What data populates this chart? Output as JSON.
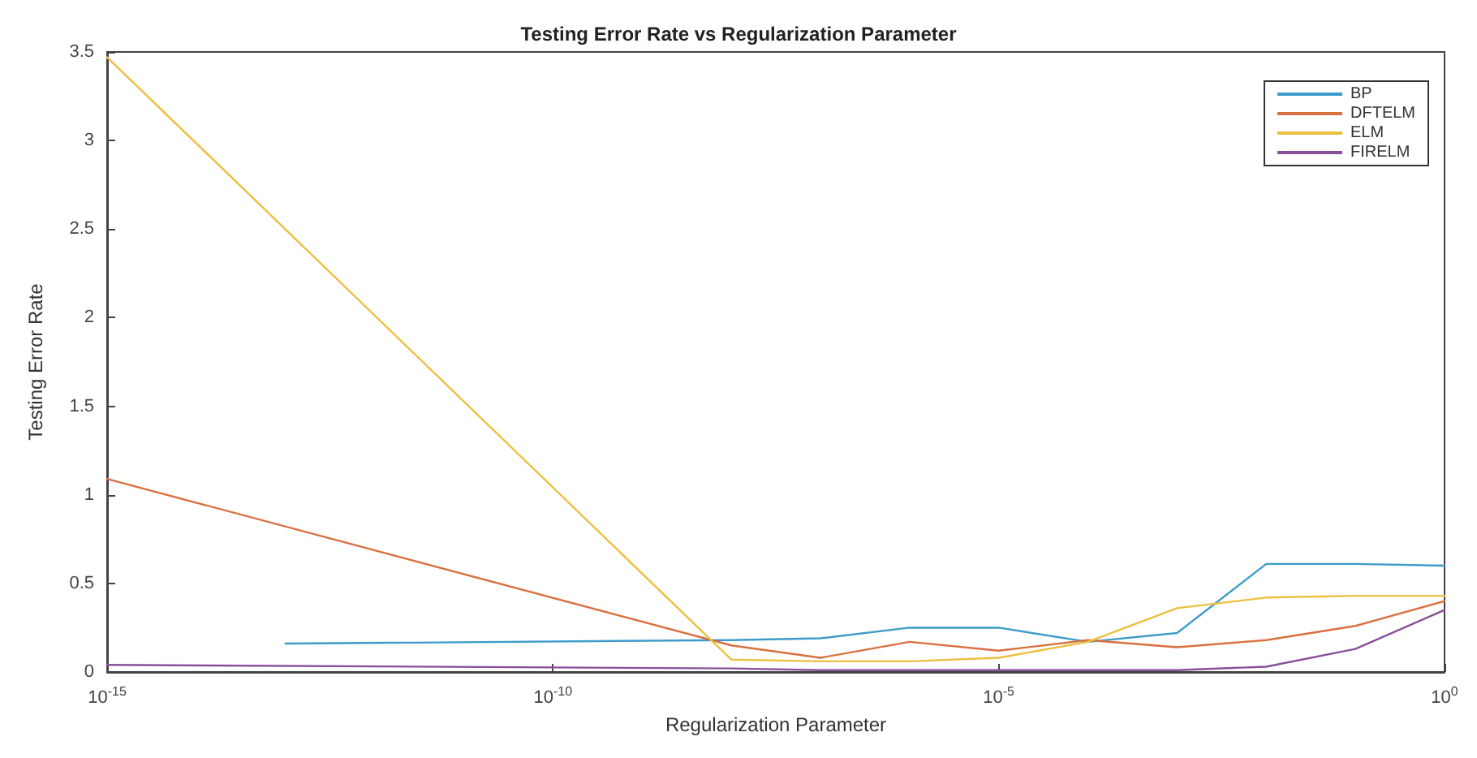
{
  "chart_data": {
    "type": "line",
    "title": "Testing Error Rate vs Regularization Parameter",
    "xlabel": "Regularization Parameter",
    "ylabel": "Testing Error Rate",
    "log": "x",
    "xlim": [
      1e-15,
      1
    ],
    "xticks": [
      {
        "value": 1e-15,
        "label": "10$^{-15}$"
      },
      {
        "value": 1e-10,
        "label": "10$^{-10}$"
      },
      {
        "value": 1e-05,
        "label": "10$^{-5}$"
      },
      {
        "value": 1,
        "label": "10$^{0}$"
      }
    ],
    "ylim": [
      0,
      3.5
    ],
    "yticks": [
      0,
      0.5,
      1,
      1.5,
      2,
      2.5,
      3,
      3.5
    ],
    "grid": false,
    "legend": "top right",
    "marker": "none",
    "line_style": "solid",
    "series": [
      {
        "name": "BP",
        "color": "#3d9bc9",
        "x": [
          1e-13,
          1e-08,
          1e-07,
          1e-06,
          1e-05,
          0.0001,
          0.001,
          0.01,
          0.1,
          1
        ],
        "values": [
          0.16,
          0.18,
          0.19,
          0.25,
          0.25,
          0.17,
          0.22,
          0.61,
          0.61,
          0.6
        ]
      },
      {
        "name": "DFTELM",
        "color": "#d9703f",
        "x": [
          1e-15,
          1e-08,
          1e-07,
          1e-06,
          1e-05,
          0.0001,
          0.001,
          0.01,
          0.1,
          1
        ],
        "values": [
          1.09,
          0.15,
          0.08,
          0.17,
          0.12,
          0.18,
          0.14,
          0.18,
          0.26,
          0.4
        ]
      },
      {
        "name": "ELM",
        "color": "#edbf3f",
        "x": [
          1e-15,
          1e-08,
          1e-07,
          1e-06,
          1e-05,
          0.0001,
          0.001,
          0.01,
          0.1,
          1
        ],
        "values": [
          3.47,
          0.07,
          0.06,
          0.06,
          0.08,
          0.17,
          0.36,
          0.42,
          0.43,
          0.43
        ]
      },
      {
        "name": "FIRELM",
        "color": "#8a4f9a",
        "x": [
          1e-15,
          1e-08,
          1e-07,
          1e-06,
          1e-05,
          0.0001,
          0.001,
          0.01,
          0.1,
          1
        ],
        "values": [
          0.04,
          0.02,
          0.01,
          0.01,
          0.01,
          0.01,
          0.01,
          0.03,
          0.13,
          0.35
        ]
      }
    ]
  }
}
